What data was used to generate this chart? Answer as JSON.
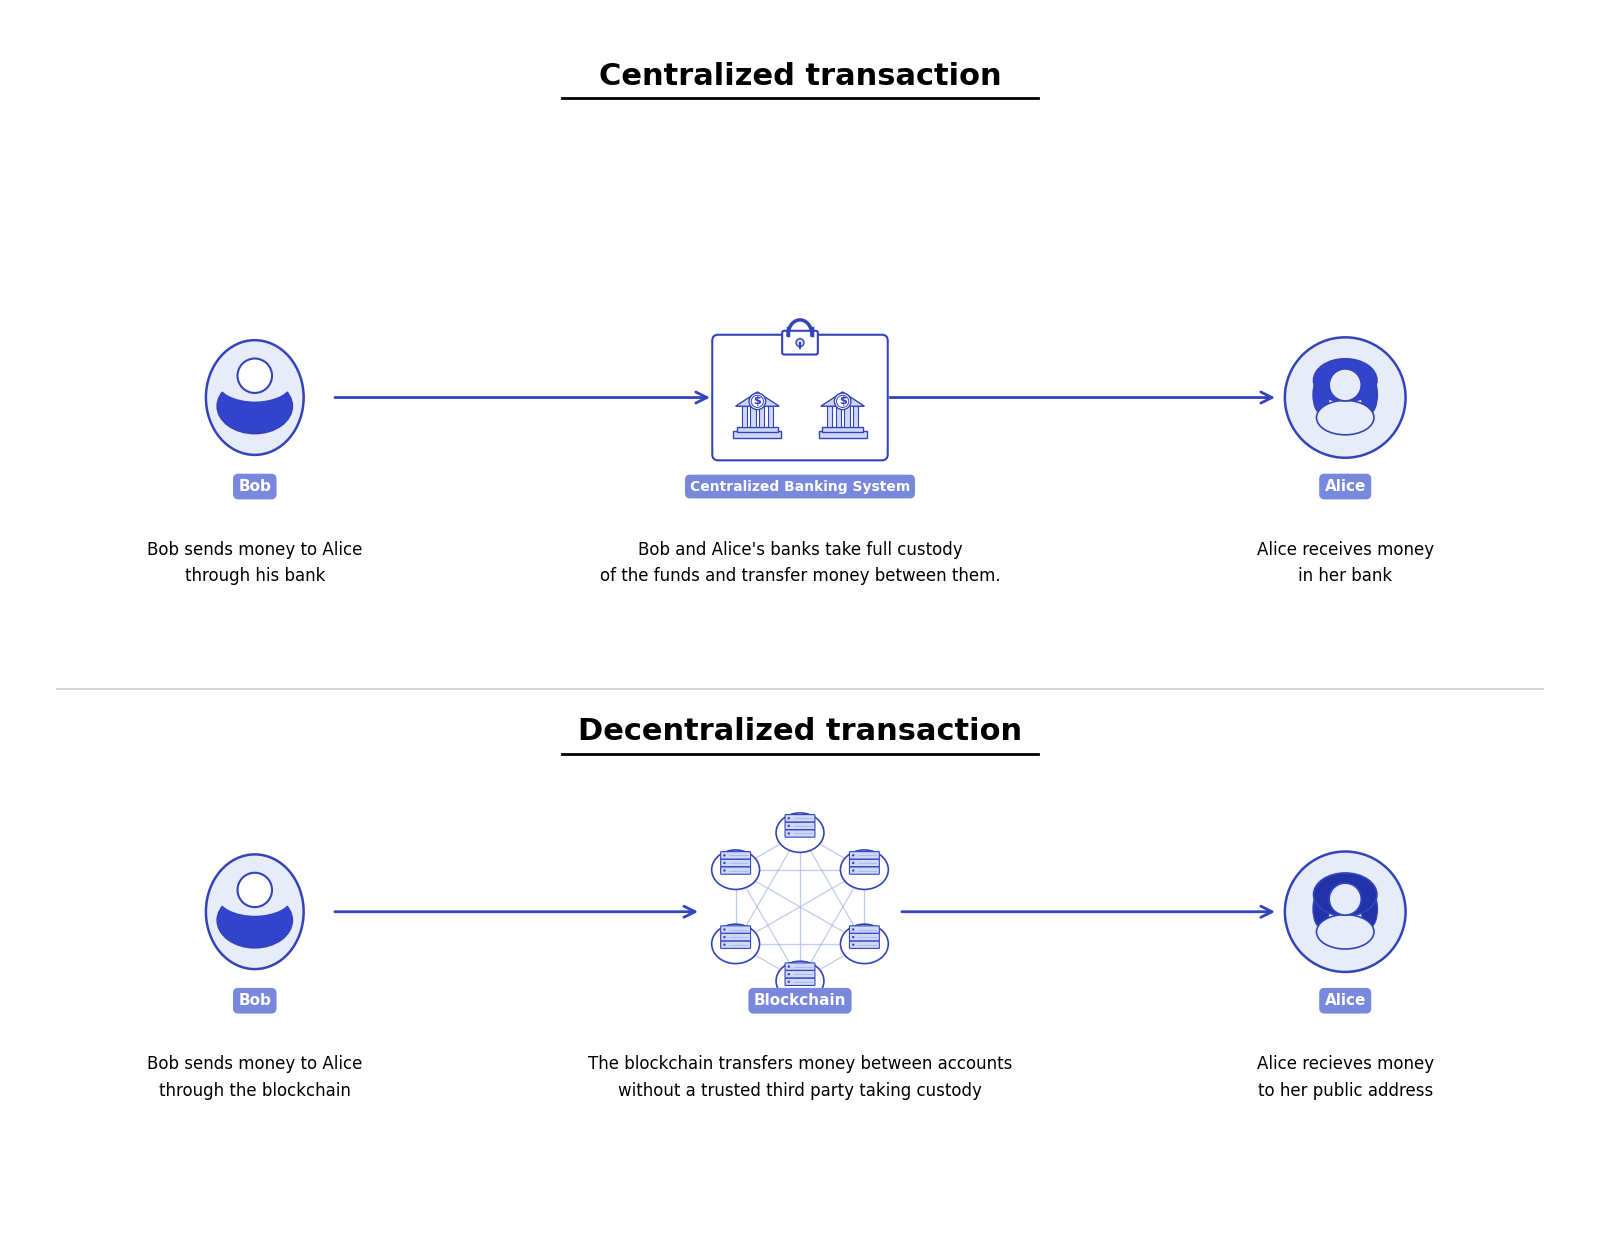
{
  "bg_color": "#ffffff",
  "title_centralized": "Centralized transaction",
  "title_decentralized": "Decentralized transaction",
  "label_bob": "Bob",
  "label_alice": "Alice",
  "label_bank": "Centralized Banking System",
  "label_blockchain": "Blockchain",
  "desc_bob_centralized": "Bob sends money to Alice\nthrough his bank",
  "desc_bank": "Bob and Alice's banks take full custody\nof the funds and transfer money between them.",
  "desc_alice_centralized": "Alice receives money\nin her bank",
  "desc_bob_decentralized": "Bob sends money to Alice\nthrough the blockchain",
  "desc_blockchain": "The blockchain transfers money between accounts\nwithout a trusted third party taking custody",
  "desc_alice_decentralized": "Alice recieves money\nto her public address",
  "blue_dark": "#3333cc",
  "blue_light": "#aabbee",
  "blue_fill": "#d0d8f8",
  "blue_solid": "#3344bb",
  "label_bg": "#7788dd",
  "label_fg": "#ffffff",
  "arrow_color": "#3344bb",
  "person_blue": "#3344cc",
  "person_bg": "#e8ecf8"
}
